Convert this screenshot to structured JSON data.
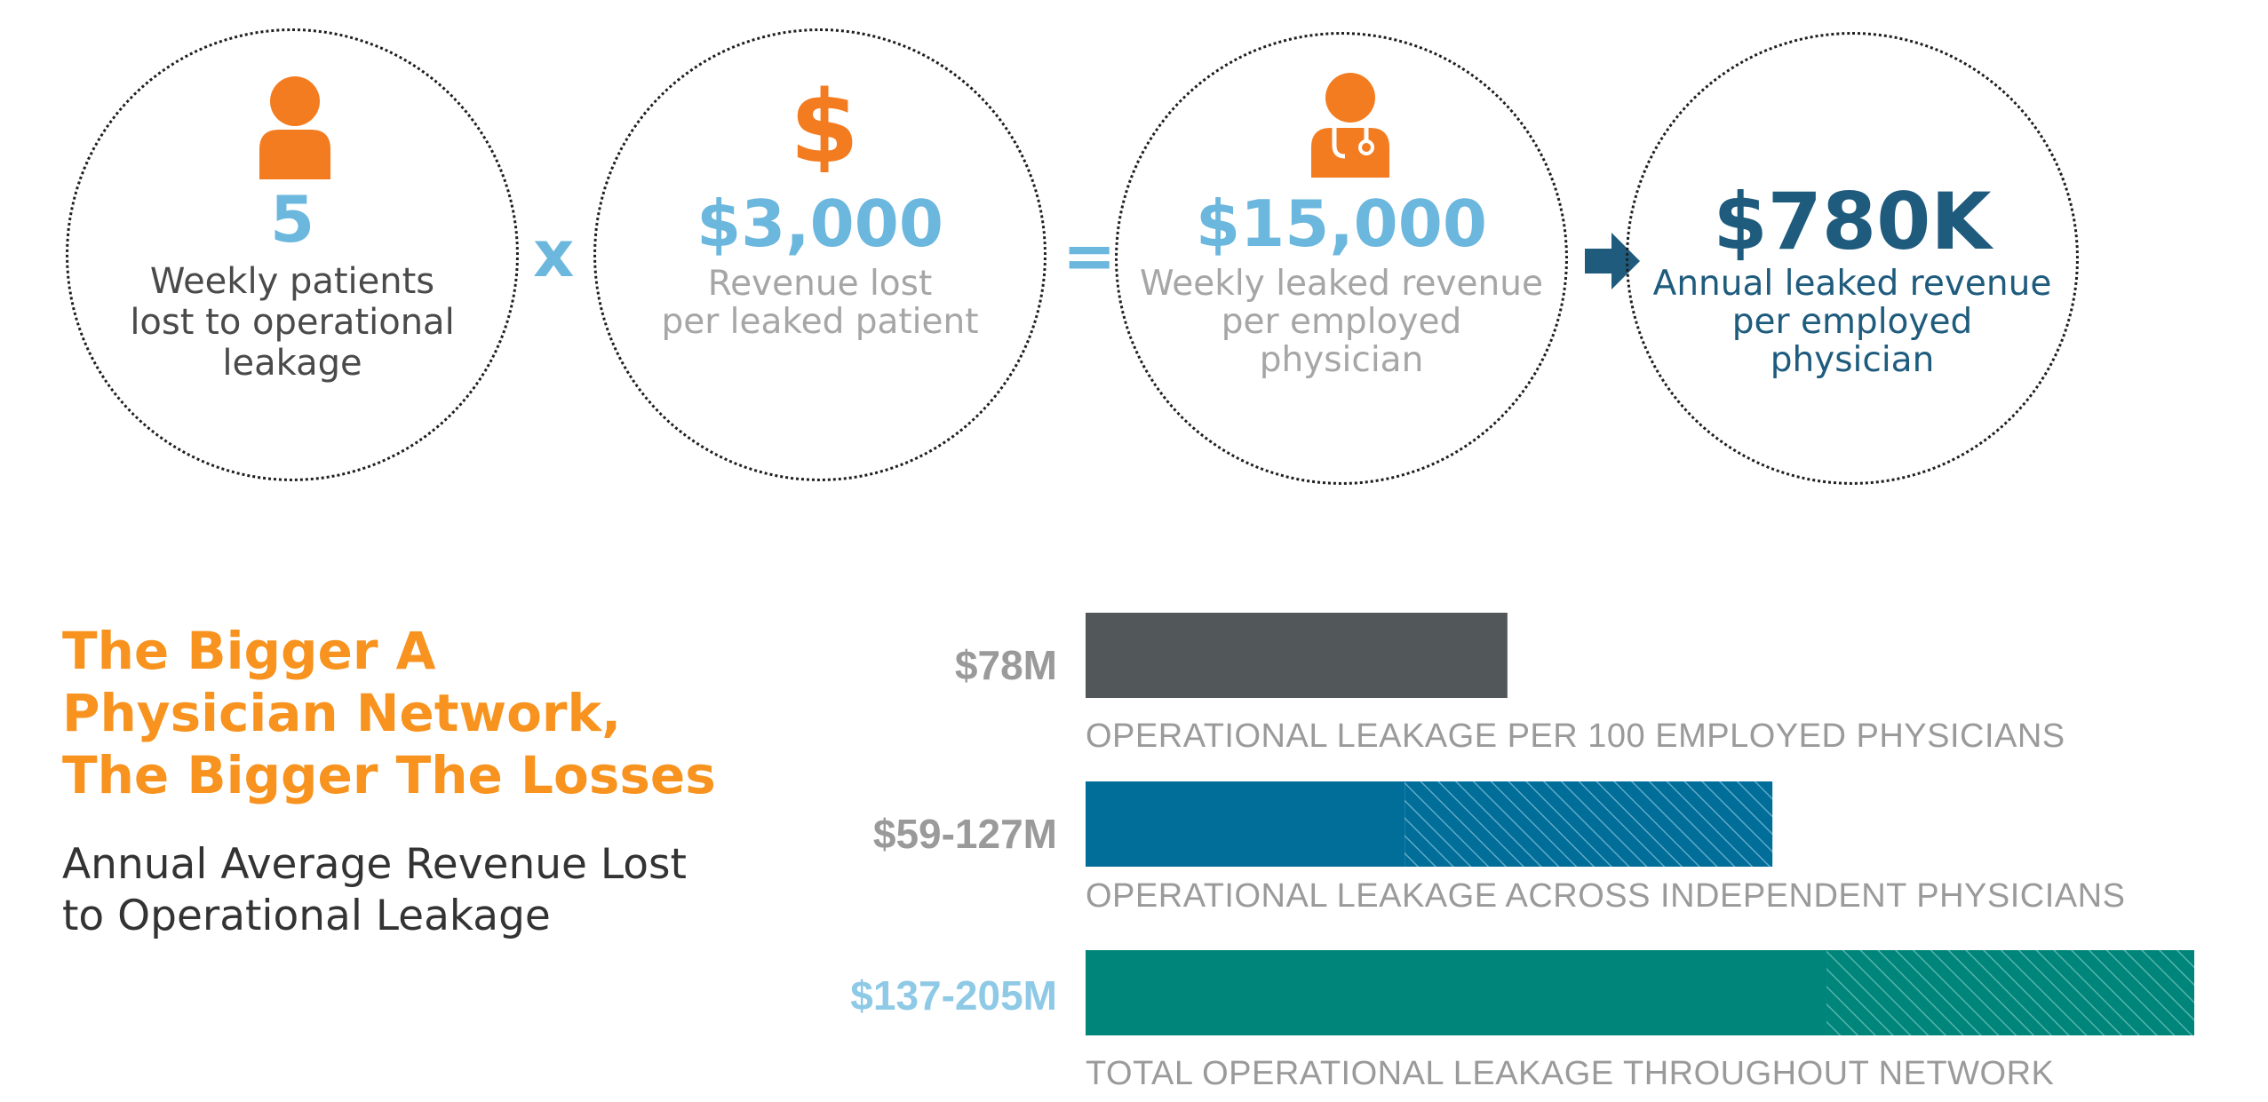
{
  "equation": {
    "patients": {
      "value": "5",
      "label_lines": [
        "Weekly patients",
        "lost to operational",
        "leakage"
      ]
    },
    "operator_multiply": "x",
    "revenue_per_patient": {
      "value": "$3,000",
      "label_lines": [
        "Revenue lost",
        "per leaked patient"
      ]
    },
    "operator_equals": "=",
    "weekly_leak": {
      "value": "$15,000",
      "label_lines": [
        "Weekly leaked revenue",
        "per employed",
        "physician"
      ]
    },
    "annual_leak": {
      "value": "$780K",
      "label_lines": [
        "Annual leaked revenue",
        "per employed",
        "physician"
      ]
    }
  },
  "heading": {
    "title_lines": [
      "The Bigger A",
      "Physician Network,",
      "The Bigger The Losses"
    ],
    "subtitle_lines": [
      "Annual Average Revenue Lost",
      "to Operational Leakage"
    ]
  },
  "icons": {
    "patient": "person-icon",
    "revenue": "dollar-sign-icon",
    "physician": "doctor-icon",
    "arrow": "right-arrow-icon"
  },
  "colors": {
    "orange": "#f7931e",
    "light_blue": "#6bb7dd",
    "navy": "#1e5b7d",
    "gray_bar": "#525759",
    "blue_bar": "#006e98",
    "teal_bar": "#00857a"
  },
  "chart_data": {
    "type": "bar",
    "orientation": "horizontal",
    "categories": [
      "OPERATIONAL LEAKAGE PER 100 EMPLOYED  PHYSICIANS",
      "OPERATIONAL LEAKAGE ACROSS INDEPENDENT PHYSICIANS",
      "TOTAL OPERATIONAL LEAKAGE THROUGHOUT NETWORK"
    ],
    "value_labels": [
      "$78M",
      "$59-127M",
      "$137-205M"
    ],
    "values_low": [
      78,
      59,
      137
    ],
    "values_high": [
      78,
      127,
      205
    ],
    "unit": "$M",
    "xlim": [
      0,
      205
    ],
    "colors": [
      "#525759",
      "#006e98",
      "#00857a"
    ],
    "label_colors": [
      "#9a9a9a",
      "#9a9a9a",
      "#8ec9e6"
    ],
    "range_style": "hatched",
    "grid": false
  }
}
